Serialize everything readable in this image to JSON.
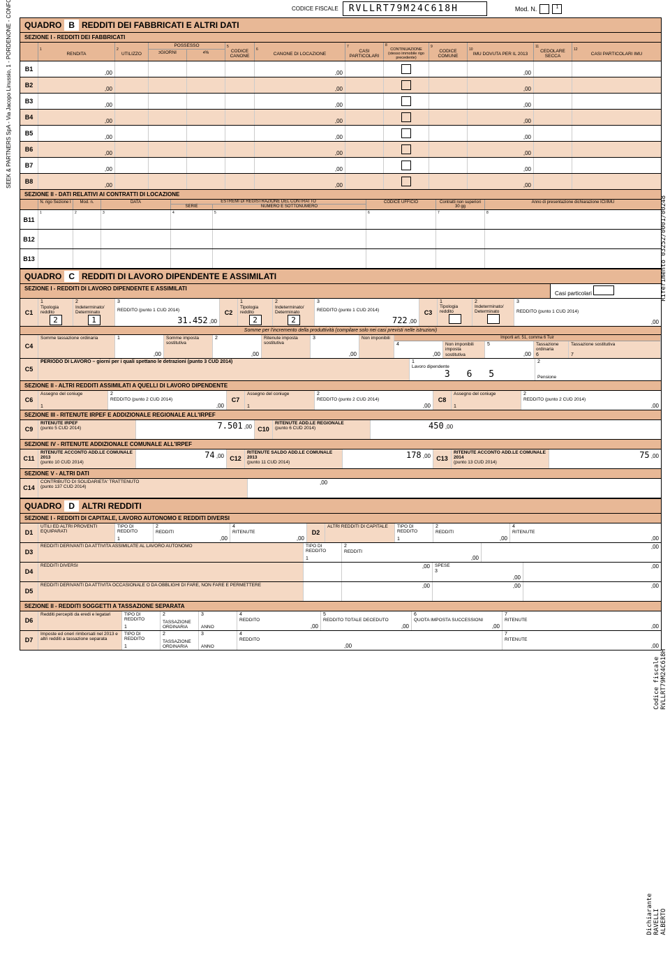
{
  "header": {
    "cf_label": "CODICE FISCALE",
    "cf_value": "RVLLRT79M24C618H",
    "mod": "Mod. N.",
    "mod_n": "1"
  },
  "side": {
    "left": "SEEK & PARTNERS SpA - Via Jacopo Linussio, 1 - PORDENONE - CONFORME AL PROVVEDIMENTO AGENZIA DELLE ENTRATE DEL 10/03/2014",
    "right_top": "Riferimento 03252/0001/00248",
    "right_mid": "Codice fiscale RVLLRT79M24C618H",
    "right_bot": "Dichiarante RAVELLI ALBERTO"
  },
  "qB": {
    "title1": "QUADRO",
    "title2": "B",
    "title3": "REDDITI DEI FABBRICATI E ALTRI DATI",
    "sez1": "SEZIONE I - REDDITI DEI FABBRICATI",
    "cols": {
      "c1": "RENDITA",
      "c2": "UTILIZZO",
      "c3": "GIORNI",
      "c4": "%",
      "poss": "POSSESSO",
      "c5": "CODICE CANONE",
      "c6": "CANONE DI LOCAZIONE",
      "c7": "CASI PARTICOLARI",
      "c8": "CONTINUAZIONE (stesso immobile rigo precedente)",
      "c9": "CODICE COMUNE",
      "c10": "IMU DOVUTA PER IL 2013",
      "c11": "CEDOLARE SECCA",
      "c12": "CASI PARTICOLARI IMU"
    },
    "rows": [
      "B1",
      "B2",
      "B3",
      "B4",
      "B5",
      "B6",
      "B7",
      "B8"
    ],
    "sez2": "SEZIONE II - DATI RELATIVI AI CONTRATTI DI LOCAZIONE",
    "sez2cols": {
      "a": "N. rigo Sezione I",
      "b": "Mod. n.",
      "c": "DATA",
      "d": "SERIE",
      "e": "NUMERO E SOTTONUMERO",
      "estremi": "ESTREMI DI REGISTRAZIONE DEL CONTRATTO",
      "f": "CODICE UFFICIO",
      "g": "Contratti non superiori 30 gg",
      "h": "Anno di presentazione dichiarazione ICI/IMU"
    },
    "rows2": [
      "B11",
      "B12",
      "B13"
    ]
  },
  "qC": {
    "title1": "QUADRO",
    "title2": "C",
    "title3": "REDDITI DI LAVORO DIPENDENTE E ASSIMILATI",
    "sez1": "SEZIONE I - REDDITI DI LAVORO DIPENDENTE E ASSIMILATI",
    "casi": "Casi particolari",
    "c1": {
      "tip": "Tipologia reddito",
      "ind": "Indeterminato/ Determinato",
      "red": "REDDITO (punto 1 CUD 2014)",
      "v_tip1": "2",
      "v_ind1": "1",
      "v_red1": "31.452",
      "v_tip2": "2",
      "v_ind2": "2",
      "v_red2": "722"
    },
    "somme": "Somme per l'incremento della produttività (compilare solo nei casi previsti nelle istruzioni)",
    "c4": {
      "a": "Somme tassazione ordinaria",
      "b": "Somme imposta sostitutiva",
      "c": "Ritenute imposta sostitutiva",
      "d": "Non imponibili",
      "imp": "Importi art. 51, comma 6 Tuir",
      "e": "Non imponibili imposta sostitutiva",
      "f": "Tassazione ordinaria",
      "g": "Tassazione sostitutiva"
    },
    "c5": {
      "label": "PERIODO DI LAVORO – giorni per i quali spettano le detrazioni (punto 3 CUD 2014)",
      "lav": "Lavoro dipendente",
      "pen": "Pensione",
      "v": "3 6 5"
    },
    "sez2": "SEZIONE II - ALTRI REDDITI ASSIMILATI A QUELLI DI LAVORO DIPENDENTE",
    "c6": {
      "a": "Assegno del coniuge",
      "b": "REDDITO (punto 2 CUD 2014)"
    },
    "sez3": "SEZIONE III - RITENUTE IRPEF E ADDIZIONALE REGIONALE ALL'IRPEF",
    "c9": {
      "a": "RITENUTE IRPEF",
      "a2": "(punto 5 CUD 2014)",
      "v9": "7.501",
      "b": "RITENUTE ADD.LE REGIONALE",
      "b2": "(punto 6 CUD 2014)",
      "v10": "450"
    },
    "sez4": "SEZIONE IV - RITENUTE ADDIZIONALE COMUNALE ALL'IRPEF",
    "c11": {
      "a": "RITENUTE ACCONTO ADD.LE COMUNALE 2013",
      "a2": "(punto 10 CUD 2014)",
      "v11": "74",
      "b": "RITENUTE SALDO ADD.LE COMUNALE 2013",
      "b2": "(punto 11 CUD 2014)",
      "v12": "178",
      "c": "RITENUTE ACCONTO ADD.LE COMUNALE 2014",
      "c2": "(punto 13 CUD 2014)",
      "v13": "75"
    },
    "sez5": "SEZIONE V - ALTRI DATI",
    "c14": {
      "a": "CONTRIBUTO DI SOLIDARIETA' TRATTENUTO",
      "a2": "(punto 137 CUD 2014)"
    }
  },
  "qD": {
    "title1": "QUADRO",
    "title2": "D",
    "title3": "ALTRI REDDITI",
    "sez1": "SEZIONE I - REDDITI DI CAPITALE, LAVORO AUTONOMO E REDDITI DIVERSI",
    "d1": {
      "a": "UTILI ED ALTRI PROVENTI EQUIPARATI",
      "tr": "TIPO DI REDDITO",
      "r": "REDDITI",
      "rt": "RITENUTE",
      "b": "ALTRI REDDITI DI CAPITALE"
    },
    "d3": "REDDITI DERIVANTI DA ATTIVITA ASSIMILATE AL LAVORO AUTONOMO",
    "d4": "REDDITI DIVERSI",
    "spese": "SPESE",
    "d5": "REDDITI DERIVANTI DA ATTIVITA OCCASIONALE O DA OBBLIGHI DI FARE, NON FARE E PERMETTERE",
    "sez2": "SEZIONE II - REDDITI SOGGETTI A TASSAZIONE SEPARATA",
    "d6": {
      "a": "Redditi percepiti da eredi e legatari",
      "tr": "TIPO DI REDDITO",
      "to": "TASSAZIONE ORDINARIA",
      "an": "ANNO",
      "r": "REDDITO",
      "rtd": "REDDITO TOTALE DECEDUTO",
      "qis": "QUOTA IMPOSTA SUCCESSIONI",
      "rt": "RITENUTE"
    },
    "d7": "Imposte ed oneri rimborsati nel 2013 e altri redditi a tassazione separata"
  },
  "colors": {
    "peach": "#e8b896",
    "lightpeach": "#f5d9c4"
  }
}
